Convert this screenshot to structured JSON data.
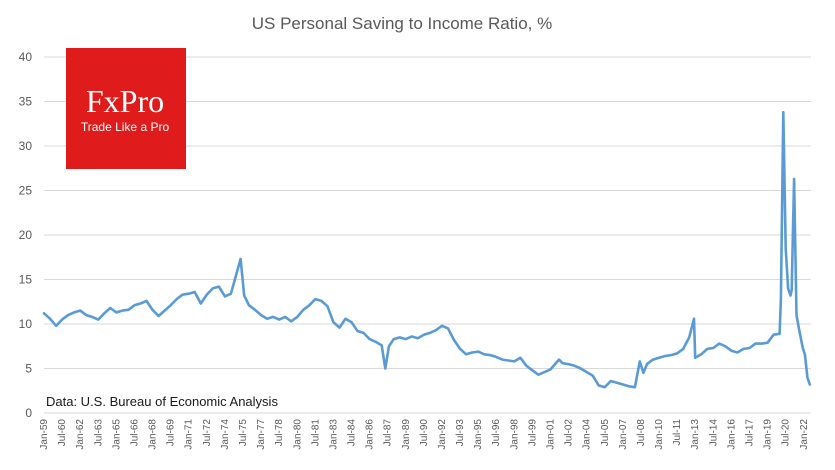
{
  "chart_data": {
    "type": "line",
    "title": "US Personal Saving to Income Ratio, %",
    "xlabel": "",
    "ylabel": "",
    "ylim": [
      0,
      40
    ],
    "yticks": [
      0,
      5,
      10,
      15,
      20,
      25,
      30,
      35,
      40
    ],
    "xlim": [
      1959.0,
      2022.6
    ],
    "grid": true,
    "legend": "none",
    "x_tick_labels": [
      "Jan-59",
      "Jul-60",
      "Jan-62",
      "Jul-63",
      "Jan-65",
      "Jul-66",
      "Jan-68",
      "Jul-69",
      "Jan-71",
      "Jul-72",
      "Jan-74",
      "Jul-75",
      "Jan-77",
      "Jul-78",
      "Jan-80",
      "Jul-81",
      "Jan-83",
      "Jul-84",
      "Jan-86",
      "Jul-87",
      "Jan-89",
      "Jul-90",
      "Jan-92",
      "Jul-93",
      "Jan-95",
      "Jul-96",
      "Jan-98",
      "Jul-99",
      "Jan-01",
      "Jul-02",
      "Jan-04",
      "Jul-05",
      "Jan-07",
      "Jul-08",
      "Jan-10",
      "Jul-11",
      "Jan-13",
      "Jul-14",
      "Jan-16",
      "Jul-17",
      "Jan-19",
      "Jul-20",
      "Jan-22"
    ],
    "series": [
      {
        "color": "#5b9bd5",
        "x": [
          1959.0,
          1959.5,
          1960.0,
          1960.5,
          1961.0,
          1961.5,
          1962.0,
          1962.5,
          1963.0,
          1963.5,
          1964.0,
          1964.5,
          1965.0,
          1965.5,
          1966.0,
          1966.5,
          1967.0,
          1967.5,
          1968.0,
          1968.5,
          1969.0,
          1969.5,
          1970.0,
          1970.5,
          1971.0,
          1971.5,
          1972.0,
          1972.5,
          1973.0,
          1973.5,
          1974.0,
          1974.5,
          1975.3,
          1975.6,
          1976.0,
          1976.5,
          1977.0,
          1977.5,
          1978.0,
          1978.5,
          1979.0,
          1979.5,
          1980.0,
          1980.5,
          1981.0,
          1981.5,
          1982.0,
          1982.5,
          1983.0,
          1983.5,
          1984.0,
          1984.5,
          1985.0,
          1985.5,
          1986.0,
          1986.5,
          1987.0,
          1987.3,
          1987.6,
          1988.0,
          1988.5,
          1989.0,
          1989.5,
          1990.0,
          1990.5,
          1991.0,
          1991.5,
          1992.0,
          1992.5,
          1993.0,
          1993.5,
          1994.0,
          1994.5,
          1995.0,
          1995.5,
          1996.0,
          1996.5,
          1997.0,
          1997.5,
          1998.0,
          1998.5,
          1999.0,
          1999.5,
          2000.0,
          2000.5,
          2001.0,
          2001.7,
          2002.0,
          2002.5,
          2003.0,
          2003.5,
          2004.0,
          2004.5,
          2005.0,
          2005.5,
          2006.0,
          2006.5,
          2007.0,
          2007.5,
          2008.0,
          2008.4,
          2008.7,
          2009.0,
          2009.5,
          2010.0,
          2010.5,
          2011.0,
          2011.5,
          2012.0,
          2012.5,
          2012.9,
          2013.0,
          2013.5,
          2014.0,
          2014.5,
          2015.0,
          2015.5,
          2016.0,
          2016.5,
          2017.0,
          2017.5,
          2018.0,
          2018.5,
          2019.0,
          2019.5,
          2020.0,
          2020.1,
          2020.3,
          2020.5,
          2020.7,
          2020.9,
          2021.0,
          2021.1,
          2021.2,
          2021.4,
          2021.6,
          2021.9,
          2022.1,
          2022.3,
          2022.5
        ],
        "y": [
          11.2,
          10.6,
          9.8,
          10.5,
          11.0,
          11.3,
          11.5,
          11.0,
          10.8,
          10.5,
          11.2,
          11.8,
          11.3,
          11.5,
          11.6,
          12.1,
          12.3,
          12.6,
          11.6,
          10.9,
          11.5,
          12.1,
          12.8,
          13.3,
          13.4,
          13.6,
          12.3,
          13.3,
          14.0,
          14.2,
          13.1,
          13.4,
          17.3,
          13.2,
          12.1,
          11.6,
          11.0,
          10.6,
          10.8,
          10.5,
          10.8,
          10.3,
          10.8,
          11.6,
          12.1,
          12.8,
          12.6,
          12.0,
          10.2,
          9.6,
          10.6,
          10.2,
          9.2,
          9.0,
          8.3,
          8.0,
          7.6,
          5.0,
          7.5,
          8.3,
          8.5,
          8.3,
          8.6,
          8.4,
          8.8,
          9.0,
          9.3,
          9.8,
          9.5,
          8.2,
          7.2,
          6.6,
          6.8,
          6.9,
          6.6,
          6.5,
          6.3,
          6.0,
          5.9,
          5.8,
          6.2,
          5.3,
          4.8,
          4.3,
          4.6,
          4.9,
          6.0,
          5.6,
          5.5,
          5.3,
          5.0,
          4.6,
          4.2,
          3.1,
          2.9,
          3.6,
          3.4,
          3.2,
          3.0,
          2.9,
          5.8,
          4.5,
          5.5,
          6.0,
          6.2,
          6.4,
          6.5,
          6.7,
          7.2,
          8.5,
          10.6,
          6.2,
          6.6,
          7.2,
          7.3,
          7.8,
          7.5,
          7.0,
          6.8,
          7.2,
          7.3,
          7.8,
          7.8,
          7.9,
          8.8,
          8.9,
          12.8,
          33.8,
          18.5,
          14.0,
          13.2,
          13.8,
          20.2,
          26.3,
          11.0,
          9.5,
          7.4,
          6.5,
          4.0,
          3.2
        ]
      }
    ],
    "source": "Data: U.S. Bureau of Economic Analysis",
    "logo": {
      "brand": "FxPro",
      "tagline": "Trade Like a Pro",
      "color": "#e01b1b"
    }
  }
}
